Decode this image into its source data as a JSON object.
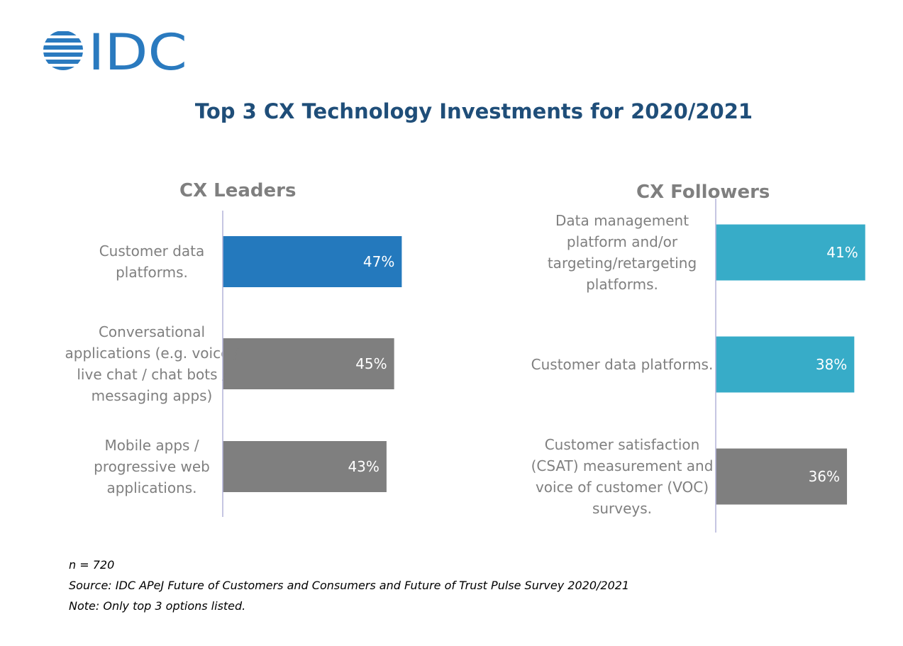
{
  "logo": {
    "text": "IDC",
    "color": "#2a7abf"
  },
  "title": "Top 3 CX Technology Investments for 2020/2021",
  "chart_data": [
    {
      "type": "bar",
      "orientation": "horizontal",
      "title": "CX Leaders",
      "categories": [
        [
          "Customer data",
          "platforms."
        ],
        [
          "Conversational",
          "applications (e.g. voice /",
          "live chat / chat bots /",
          "messaging apps)"
        ],
        [
          "Mobile apps /",
          "progressive web",
          "applications."
        ]
      ],
      "values": [
        47,
        45,
        43
      ],
      "value_labels": [
        "47%",
        "45%",
        "43%"
      ],
      "colors": [
        "#2479bd",
        "#7f7f7f",
        "#7f7f7f"
      ],
      "xlim": [
        0,
        100
      ]
    },
    {
      "type": "bar",
      "orientation": "horizontal",
      "title": "CX Followers",
      "categories": [
        [
          "Data management",
          "platform and/or",
          "targeting/retargeting",
          "platforms."
        ],
        [
          "Customer data platforms."
        ],
        [
          "Customer satisfaction",
          "(CSAT) measurement and",
          "voice of customer (VOC)",
          "surveys."
        ]
      ],
      "values": [
        41,
        38,
        36
      ],
      "value_labels": [
        "41%",
        "38%",
        "36%"
      ],
      "colors": [
        "#37acc8",
        "#37acc8",
        "#7f7f7f"
      ],
      "xlim": [
        0,
        100
      ]
    }
  ],
  "footer": {
    "n": "n = 720",
    "source": "Source: IDC APeJ Future of Customers and Consumers and Future of Trust Pulse Survey 2020/2021",
    "note": "Note: Only top 3 options listed."
  }
}
